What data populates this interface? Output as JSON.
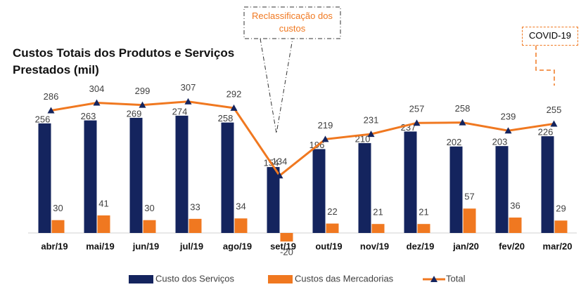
{
  "chart_data": {
    "type": "bar",
    "title": "Custos Totais dos Produtos e Serviços Prestados (mil)",
    "categories": [
      "abr/19",
      "mai/19",
      "jun/19",
      "jul/19",
      "ago/19",
      "set/19",
      "out/19",
      "nov/19",
      "dez/19",
      "jan/20",
      "fev/20",
      "mar/20"
    ],
    "series": [
      {
        "name": "Custo dos Serviços",
        "color": "#14245e",
        "values": [
          256,
          263,
          269,
          274,
          258,
          154,
          196,
          210,
          237,
          202,
          203,
          226
        ]
      },
      {
        "name": "Custos das Mercadorias",
        "color": "#f07820",
        "values": [
          30,
          41,
          30,
          33,
          34,
          -20,
          22,
          21,
          21,
          57,
          36,
          29
        ]
      },
      {
        "name": "Total",
        "type": "line",
        "color": "#f07820",
        "marker_color": "#14245e",
        "values": [
          286,
          304,
          299,
          307,
          292,
          134,
          219,
          231,
          257,
          258,
          239,
          255
        ]
      }
    ],
    "ylim": [
      -40,
      350
    ],
    "annotations": [
      {
        "text": "Reclassificação dos custos",
        "color": "#f07820"
      },
      {
        "text": "COVID-19",
        "color": "#000000"
      }
    ],
    "legend": "bottom"
  }
}
